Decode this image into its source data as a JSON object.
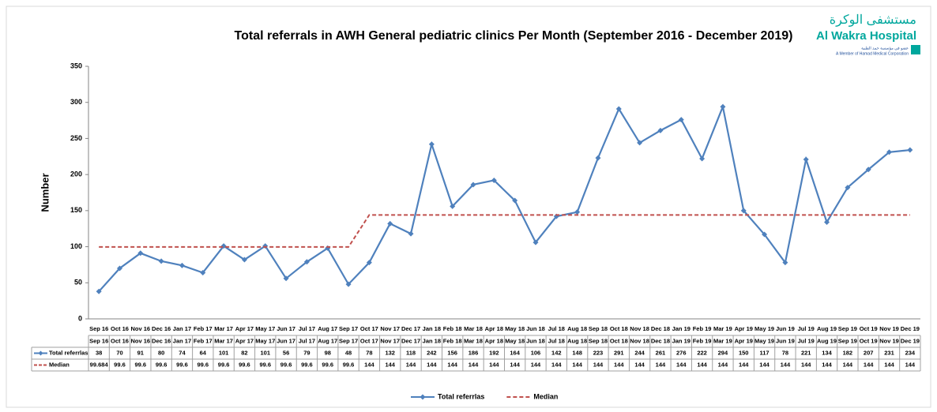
{
  "logo": {
    "arabic_name": "مستشفى الوكرة",
    "english_name": "Al Wakra Hospital",
    "arabic_member": "عضو في مؤسسة حمد الطبية",
    "english_member": "A Member of Hamad Medical Corporation"
  },
  "chart_data": {
    "type": "line",
    "title": "Total referrals  in AWH General pediatric clinics Per Month (September 2016 - December 2019)",
    "y_label": "Number",
    "categories": [
      "Sep 16",
      "Oct 16",
      "Nov 16",
      "Dec 16",
      "Jan 17",
      "Feb 17",
      "Mar 17",
      "Apr 17",
      "May 17",
      "Jun 17",
      "Jul 17",
      "Aug 17",
      "Sep 17",
      "Oct 17",
      "Nov 17",
      "Dec 17",
      "Jan 18",
      "Feb 18",
      "Mar 18",
      "Apr 18",
      "May 18",
      "Jun 18",
      "Jul 18",
      "Aug 18",
      "Sep 18",
      "Oct 18",
      "Nov 18",
      "Dec 18",
      "Jan 19",
      "Feb 19",
      "Mar 19",
      "Apr 19",
      "May 19",
      "Jun 19",
      "Jul 19",
      "Aug 19",
      "Sep 19",
      "Oct 19",
      "Nov 19",
      "Dec 19"
    ],
    "series": [
      {
        "name": "Total referrlas",
        "color": "#4f81bd",
        "style": "solid",
        "marker": "diamond",
        "values": [
          38,
          70,
          91,
          80,
          74,
          64,
          101,
          82,
          101,
          56,
          79,
          98,
          48,
          78,
          132,
          118,
          242,
          156,
          186,
          192,
          164,
          106,
          142,
          148,
          223,
          291,
          244,
          261,
          276,
          222,
          294,
          150,
          117,
          78,
          221,
          134,
          182,
          207,
          231,
          234
        ]
      },
      {
        "name": "Median",
        "color": "#c0504d",
        "style": "dashed",
        "marker": "none",
        "values": [
          99.684,
          99.6,
          99.6,
          99.6,
          99.6,
          99.6,
          99.6,
          99.6,
          99.6,
          99.6,
          99.6,
          99.6,
          99.6,
          144,
          144,
          144,
          144,
          144,
          144,
          144,
          144,
          144,
          144,
          144,
          144,
          144,
          144,
          144,
          144,
          144,
          144,
          144,
          144,
          144,
          144,
          144,
          144,
          144,
          144,
          144
        ]
      }
    ],
    "ylim": [
      0,
      350
    ],
    "yticks": [
      0,
      50,
      100,
      150,
      200,
      250,
      300,
      350
    ],
    "grid": false,
    "legend": "bottom",
    "data_table": true
  }
}
